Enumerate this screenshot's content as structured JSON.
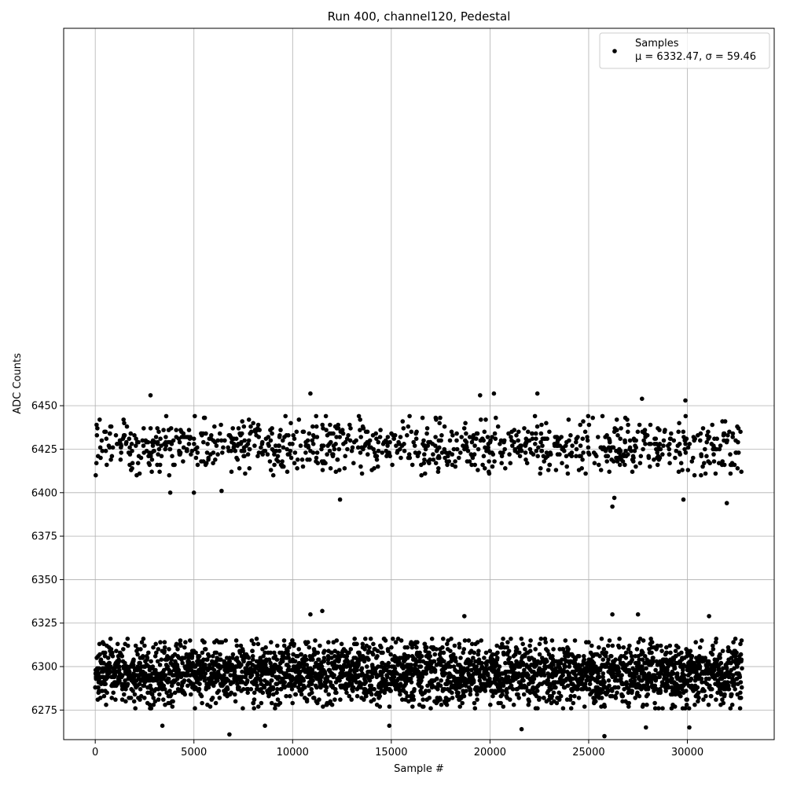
{
  "chart_data": {
    "type": "scatter",
    "title": "Run 400, channel120, Pedestal",
    "xlabel": "Sample #",
    "ylabel": "ADC Counts",
    "xlim": [
      -1600,
      34400
    ],
    "ylim": [
      6258,
      6667
    ],
    "xticks": [
      0,
      5000,
      10000,
      15000,
      20000,
      25000,
      30000
    ],
    "yticks": [
      6275,
      6300,
      6325,
      6350,
      6375,
      6400,
      6425,
      6450
    ],
    "grid": true,
    "legend": {
      "placement": "top-right",
      "series_label": "Samples",
      "stats_label": "μ = 6332.47, σ = 59.46"
    },
    "marker_color": "#000000",
    "series": [
      {
        "name": "Samples",
        "n_samples": 32768,
        "bands": [
          {
            "center": 6427,
            "halfwidth": 17
          },
          {
            "center": 6296,
            "halfwidth": 20
          }
        ],
        "outliers": [
          {
            "x": 2800,
            "y": 6456
          },
          {
            "x": 10900,
            "y": 6457
          },
          {
            "x": 19500,
            "y": 6456
          },
          {
            "x": 20200,
            "y": 6457
          },
          {
            "x": 22400,
            "y": 6457
          },
          {
            "x": 27700,
            "y": 6454
          },
          {
            "x": 29900,
            "y": 6453
          },
          {
            "x": 3800,
            "y": 6400
          },
          {
            "x": 5000,
            "y": 6400
          },
          {
            "x": 6400,
            "y": 6401
          },
          {
            "x": 12400,
            "y": 6396
          },
          {
            "x": 26200,
            "y": 6392
          },
          {
            "x": 26300,
            "y": 6397
          },
          {
            "x": 29800,
            "y": 6396
          },
          {
            "x": 32000,
            "y": 6394
          },
          {
            "x": 11500,
            "y": 6332
          },
          {
            "x": 10900,
            "y": 6330
          },
          {
            "x": 26200,
            "y": 6330
          },
          {
            "x": 27500,
            "y": 6330
          },
          {
            "x": 31100,
            "y": 6329
          },
          {
            "x": 18700,
            "y": 6329
          },
          {
            "x": 6800,
            "y": 6261
          },
          {
            "x": 25800,
            "y": 6260
          },
          {
            "x": 21600,
            "y": 6264
          },
          {
            "x": 14900,
            "y": 6266
          },
          {
            "x": 3400,
            "y": 6266
          },
          {
            "x": 27900,
            "y": 6265
          },
          {
            "x": 30100,
            "y": 6265
          },
          {
            "x": 8600,
            "y": 6266
          }
        ]
      }
    ]
  }
}
